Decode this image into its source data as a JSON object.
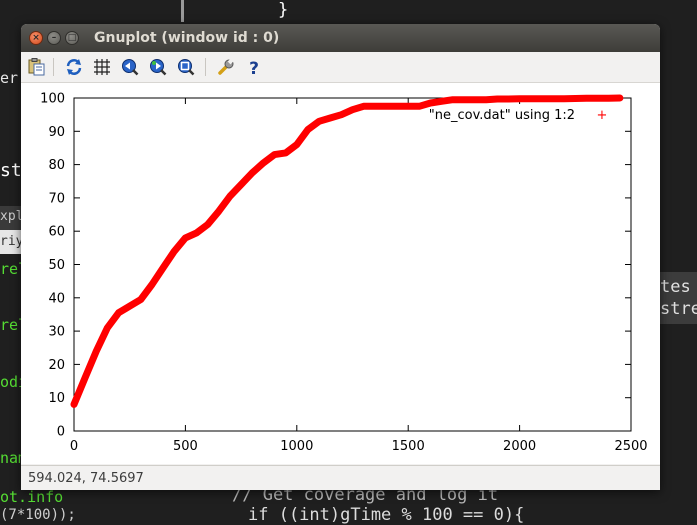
{
  "terminal": {
    "brace": "}",
    "line_comment": "// Get coverage and log it",
    "line_code": "if ((int)gTime % 100 == 0){",
    "fragments": [
      "er",
      "st",
      "xpl",
      "riya",
      "rel",
      "rel",
      "odi",
      "nam",
      "ot.info",
      "(7*100));",
      "tes",
      "stre"
    ]
  },
  "window": {
    "title": "Gnuplot (window id : 0)",
    "buttons": {
      "close": "×",
      "minimize": "–",
      "maximize": "□"
    }
  },
  "toolbar": {
    "icons": [
      "copy-to-clipboard-icon",
      "replot-icon",
      "grid-icon",
      "zoom-previous-icon",
      "zoom-next-icon",
      "unzoom-icon",
      "settings-wrench-icon",
      "help-icon"
    ]
  },
  "status": {
    "coordinates": "594.024, 74.5697"
  },
  "colors": {
    "series": "#ff0000",
    "axis": "#000000"
  },
  "chart_data": {
    "type": "line",
    "title": "",
    "xlabel": "",
    "ylabel": "",
    "xlim": [
      0,
      2500
    ],
    "ylim": [
      0,
      100
    ],
    "x_ticks": [
      "0",
      "500",
      "1000",
      "1500",
      "2000",
      "2500"
    ],
    "y_ticks": [
      "0",
      "10",
      "20",
      "30",
      "40",
      "50",
      "60",
      "70",
      "80",
      "90",
      "100"
    ],
    "grid": false,
    "legend": "top-right",
    "series": [
      {
        "name": "\"ne_cov.dat\" using 1:2",
        "marker": "+",
        "x": [
          0,
          50,
          100,
          150,
          200,
          250,
          300,
          350,
          400,
          450,
          500,
          550,
          600,
          650,
          700,
          750,
          800,
          850,
          900,
          950,
          1000,
          1050,
          1100,
          1150,
          1200,
          1250,
          1300,
          1350,
          1400,
          1450,
          1500,
          1550,
          1600,
          1650,
          1700,
          1750,
          1800,
          1850,
          1900,
          1950,
          2000,
          2100,
          2200,
          2300,
          2400,
          2450
        ],
        "y": [
          8,
          16,
          24,
          31,
          35.5,
          37.5,
          39.5,
          44,
          49,
          54,
          58,
          59.5,
          62,
          66,
          70.5,
          74,
          77.5,
          80.5,
          83,
          83.5,
          86,
          90.5,
          93,
          94,
          95,
          96.5,
          97.5,
          97.5,
          97.5,
          97.5,
          97.5,
          97.5,
          98.5,
          99,
          99.5,
          99.5,
          99.5,
          99.5,
          99.7,
          99.7,
          99.8,
          99.8,
          99.8,
          99.9,
          99.9,
          100
        ]
      }
    ]
  }
}
